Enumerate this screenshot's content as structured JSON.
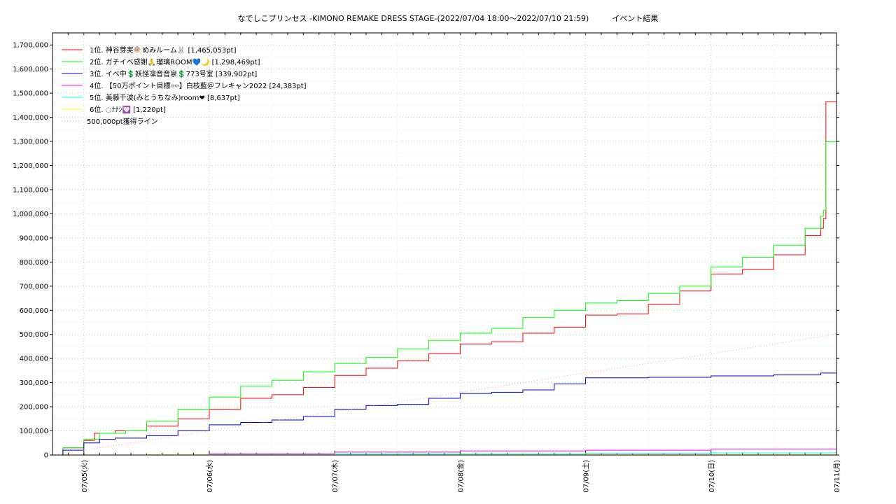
{
  "title": "なでしこプリンセス -KIMONO REMAKE DRESS STAGE-(2022/07/04 18:00～2022/07/10 21:59)　　　イベント結果",
  "chart_data": {
    "type": "line",
    "xlim": [
      "2022-07-04T18:00",
      "2022-07-11T00:00"
    ],
    "ylim": [
      0,
      1750000
    ],
    "grid": true,
    "legend_placement": "top-left",
    "x_tick_labels": [
      "07/05(火)",
      "07/06(水)",
      "07/07(木)",
      "07/08(金)",
      "07/09(土)",
      "07/10(日)",
      "07/11(月)"
    ],
    "x_tick_dates": [
      "2022-07-05T00:00",
      "2022-07-06T00:00",
      "2022-07-07T00:00",
      "2022-07-08T00:00",
      "2022-07-09T00:00",
      "2022-07-10T00:00",
      "2022-07-11T00:00"
    ],
    "y_tick_labels": [
      "0",
      "100,000",
      "200,000",
      "300,000",
      "400,000",
      "500,000",
      "600,000",
      "700,000",
      "800,000",
      "900,000",
      "1,000,000",
      "1,100,000",
      "1,200,000",
      "1,300,000",
      "1,400,000",
      "1,500,000",
      "1,600,000",
      "1,700,000"
    ],
    "y_ticks": [
      0,
      100000,
      200000,
      300000,
      400000,
      500000,
      600000,
      700000,
      800000,
      900000,
      1000000,
      1100000,
      1200000,
      1300000,
      1400000,
      1500000,
      1600000,
      1700000
    ],
    "series": [
      {
        "name": "1位. 神谷芽実🍭めみルーム🐰 [1,465,053pt]",
        "color": "#ff0000",
        "style": "step",
        "points": [
          [
            "2022-07-04T18:00",
            0
          ],
          [
            "2022-07-04T20:00",
            30000
          ],
          [
            "2022-07-05T00:00",
            60000
          ],
          [
            "2022-07-05T02:00",
            90000
          ],
          [
            "2022-07-05T06:00",
            100000
          ],
          [
            "2022-07-05T12:00",
            120000
          ],
          [
            "2022-07-05T18:00",
            150000
          ],
          [
            "2022-07-06T00:00",
            190000
          ],
          [
            "2022-07-06T06:00",
            235000
          ],
          [
            "2022-07-06T12:00",
            250000
          ],
          [
            "2022-07-06T18:00",
            280000
          ],
          [
            "2022-07-07T00:00",
            330000
          ],
          [
            "2022-07-07T06:00",
            360000
          ],
          [
            "2022-07-07T12:00",
            390000
          ],
          [
            "2022-07-07T18:00",
            420000
          ],
          [
            "2022-07-08T00:00",
            460000
          ],
          [
            "2022-07-08T06:00",
            470000
          ],
          [
            "2022-07-08T12:00",
            505000
          ],
          [
            "2022-07-08T18:00",
            530000
          ],
          [
            "2022-07-09T00:00",
            580000
          ],
          [
            "2022-07-09T06:00",
            585000
          ],
          [
            "2022-07-09T12:00",
            625000
          ],
          [
            "2022-07-09T18:00",
            680000
          ],
          [
            "2022-07-10T00:00",
            750000
          ],
          [
            "2022-07-10T06:00",
            770000
          ],
          [
            "2022-07-10T12:00",
            830000
          ],
          [
            "2022-07-10T18:00",
            910000
          ],
          [
            "2022-07-10T21:00",
            940000
          ],
          [
            "2022-07-10T21:30",
            980000
          ],
          [
            "2022-07-10T21:59",
            1465053
          ],
          [
            "2022-07-11T00:00",
            1465053
          ]
        ]
      },
      {
        "name": "2位. ガチイベ感謝🙏瑠璃ROOM💙🌙 [1,298,469pt]",
        "color": "#00ff00",
        "style": "step",
        "points": [
          [
            "2022-07-04T18:00",
            0
          ],
          [
            "2022-07-04T20:00",
            30000
          ],
          [
            "2022-07-05T00:00",
            65000
          ],
          [
            "2022-07-05T03:00",
            90000
          ],
          [
            "2022-07-05T08:00",
            100000
          ],
          [
            "2022-07-05T12:00",
            140000
          ],
          [
            "2022-07-05T18:00",
            190000
          ],
          [
            "2022-07-06T00:00",
            240000
          ],
          [
            "2022-07-06T06:00",
            285000
          ],
          [
            "2022-07-06T12:00",
            310000
          ],
          [
            "2022-07-06T18:00",
            345000
          ],
          [
            "2022-07-07T00:00",
            380000
          ],
          [
            "2022-07-07T06:00",
            405000
          ],
          [
            "2022-07-07T12:00",
            440000
          ],
          [
            "2022-07-07T18:00",
            475000
          ],
          [
            "2022-07-08T00:00",
            505000
          ],
          [
            "2022-07-08T06:00",
            525000
          ],
          [
            "2022-07-08T12:00",
            570000
          ],
          [
            "2022-07-08T18:00",
            600000
          ],
          [
            "2022-07-09T00:00",
            630000
          ],
          [
            "2022-07-09T06:00",
            640000
          ],
          [
            "2022-07-09T12:00",
            670000
          ],
          [
            "2022-07-09T18:00",
            700000
          ],
          [
            "2022-07-10T00:00",
            780000
          ],
          [
            "2022-07-10T06:00",
            820000
          ],
          [
            "2022-07-10T12:00",
            870000
          ],
          [
            "2022-07-10T18:00",
            940000
          ],
          [
            "2022-07-10T21:00",
            990000
          ],
          [
            "2022-07-10T21:30",
            1015000
          ],
          [
            "2022-07-10T21:59",
            1298469
          ],
          [
            "2022-07-11T00:00",
            1298469
          ]
        ]
      },
      {
        "name": "3位. イベ中💲妖怪凛音音泉💲773号室 [339,902pt]",
        "color": "#0000cc",
        "style": "step",
        "points": [
          [
            "2022-07-04T18:00",
            0
          ],
          [
            "2022-07-04T20:00",
            20000
          ],
          [
            "2022-07-05T00:00",
            50000
          ],
          [
            "2022-07-05T03:00",
            65000
          ],
          [
            "2022-07-05T06:00",
            70000
          ],
          [
            "2022-07-05T12:00",
            80000
          ],
          [
            "2022-07-05T18:00",
            100000
          ],
          [
            "2022-07-06T00:00",
            125000
          ],
          [
            "2022-07-06T06:00",
            135000
          ],
          [
            "2022-07-06T12:00",
            145000
          ],
          [
            "2022-07-06T18:00",
            160000
          ],
          [
            "2022-07-07T00:00",
            190000
          ],
          [
            "2022-07-07T06:00",
            205000
          ],
          [
            "2022-07-07T12:00",
            210000
          ],
          [
            "2022-07-07T18:00",
            235000
          ],
          [
            "2022-07-08T00:00",
            255000
          ],
          [
            "2022-07-08T06:00",
            260000
          ],
          [
            "2022-07-08T12:00",
            270000
          ],
          [
            "2022-07-08T18:00",
            295000
          ],
          [
            "2022-07-09T00:00",
            320000
          ],
          [
            "2022-07-09T12:00",
            322000
          ],
          [
            "2022-07-10T00:00",
            328000
          ],
          [
            "2022-07-10T12:00",
            332000
          ],
          [
            "2022-07-10T21:00",
            339902
          ],
          [
            "2022-07-11T00:00",
            339902
          ]
        ]
      },
      {
        "name": "4位. 【50万ポイント目標👓】白枝藍＠フレキャン2022 [24,383pt]",
        "color": "#ff00ff",
        "style": "step",
        "points": [
          [
            "2022-07-04T18:00",
            0
          ],
          [
            "2022-07-06T00:00",
            5000
          ],
          [
            "2022-07-07T00:00",
            12000
          ],
          [
            "2022-07-08T00:00",
            17000
          ],
          [
            "2022-07-09T00:00",
            20000
          ],
          [
            "2022-07-10T00:00",
            24383
          ],
          [
            "2022-07-11T00:00",
            24383
          ]
        ]
      },
      {
        "name": "5位. 美藤千波(みとうちなみ)room❤ [8,637pt]",
        "color": "#00ffff",
        "style": "step",
        "points": [
          [
            "2022-07-04T18:00",
            0
          ],
          [
            "2022-07-06T00:00",
            2000
          ],
          [
            "2022-07-07T00:00",
            5000
          ],
          [
            "2022-07-09T00:00",
            7000
          ],
          [
            "2022-07-10T00:00",
            8637
          ],
          [
            "2022-07-11T00:00",
            8637
          ]
        ]
      },
      {
        "name": "6位. ◌ﾅﾅｼ💟 [1,220pt]",
        "color": "#ffff00",
        "style": "step",
        "points": [
          [
            "2022-07-04T18:00",
            0
          ],
          [
            "2022-07-05T12:00",
            1220
          ],
          [
            "2022-07-11T00:00",
            1220
          ]
        ]
      },
      {
        "name": "500,000pt獲得ライン",
        "color": "#ff9999",
        "style": "dotted",
        "points": [
          [
            "2022-07-04T18:00",
            0
          ],
          [
            "2022-07-11T00:00",
            500000
          ]
        ]
      }
    ]
  }
}
